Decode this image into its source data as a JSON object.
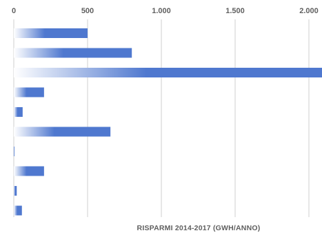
{
  "chart_data": {
    "type": "bar",
    "orientation": "horizontal",
    "title": "",
    "xlabel": "RISPARMI 2014-2017 (GWH/ANNO)",
    "ylabel": "",
    "xlim": [
      0,
      2000
    ],
    "xticks": [
      0,
      500,
      1000,
      1500,
      2000
    ],
    "xtick_labels": [
      "0",
      "500",
      "1.000",
      "1.500",
      "2.000"
    ],
    "xaxis_position": "top",
    "grid": true,
    "legend": "none",
    "categories": [
      "",
      "",
      "",
      "",
      "",
      "",
      "",
      "",
      "",
      ""
    ],
    "values": [
      500,
      800,
      2140,
      205,
      60,
      655,
      5,
      205,
      20,
      55
    ],
    "colors": {
      "bar_light": "#ffffff",
      "bar_dark": "#4f78cf",
      "grid": "#cfcfcf",
      "text": "#5f5f5f"
    }
  }
}
